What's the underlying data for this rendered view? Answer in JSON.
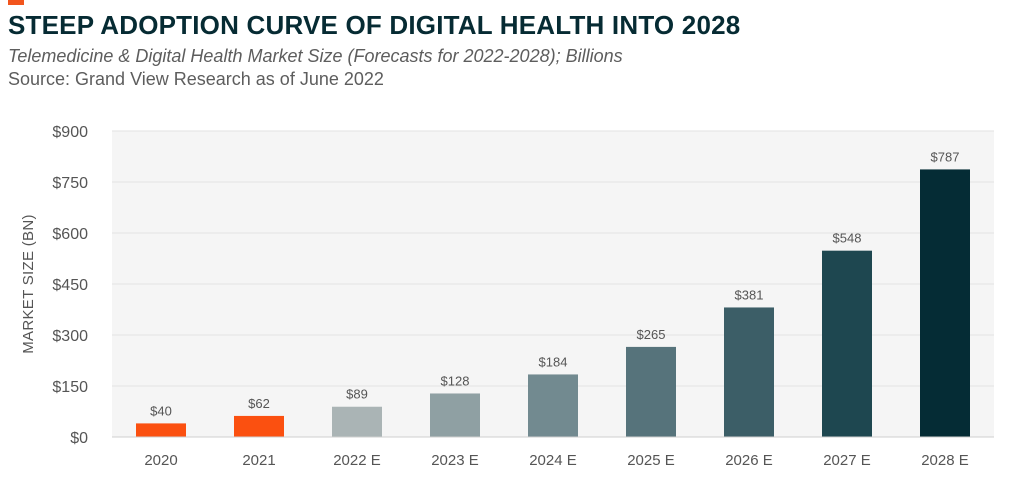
{
  "header": {
    "title": "STEEP ADOPTION CURVE OF DIGITAL HEALTH INTO 2028",
    "subtitle": "Telemedicine & Digital Health Market Size (Forecasts for 2022-2028); Billions",
    "source": "Source: Grand View Research as of June 2022"
  },
  "chart_data": {
    "type": "bar",
    "title": "",
    "xlabel": "",
    "ylabel": "MARKET SIZE (BN)",
    "ylim": [
      0,
      900
    ],
    "yticks": [
      0,
      150,
      300,
      450,
      600,
      750,
      900
    ],
    "ytick_labels": [
      "$0",
      "$150",
      "$300",
      "$450",
      "$600",
      "$750",
      "$900"
    ],
    "grid": true,
    "categories": [
      "2020",
      "2021",
      "2022 E",
      "2023 E",
      "2024 E",
      "2025 E",
      "2026 E",
      "2027 E",
      "2028 E"
    ],
    "values": [
      40,
      62,
      89,
      128,
      184,
      265,
      381,
      548,
      787
    ],
    "value_labels": [
      "$40",
      "$62",
      "$89",
      "$128",
      "$184",
      "$265",
      "$381",
      "$548",
      "$787"
    ],
    "colors": [
      "#fb5010",
      "#fb5010",
      "#aab4b5",
      "#8fa0a3",
      "#728a90",
      "#56737b",
      "#3c5e67",
      "#1e4750",
      "#052c35"
    ],
    "plot_background": "#f5f5f5",
    "grid_color": "#e2e2e2"
  }
}
